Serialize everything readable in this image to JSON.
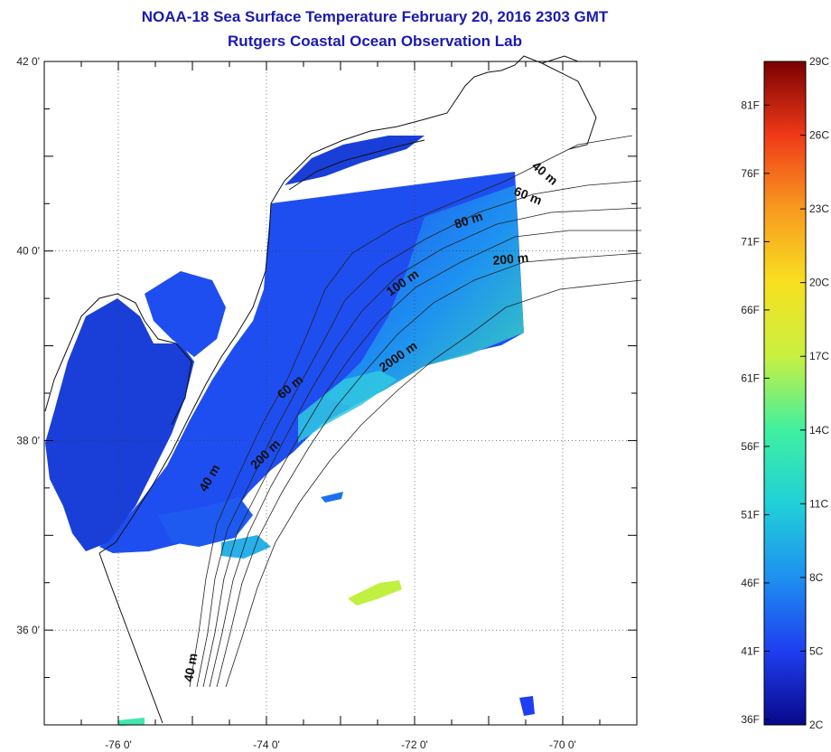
{
  "header": {
    "title": "NOAA-18 Sea Surface Temperature February 20, 2016 2303 GMT",
    "subtitle": "Rutgers Coastal Ocean Observation Lab"
  },
  "map": {
    "lat_range": [
      35,
      42
    ],
    "lon_range": [
      -77,
      -69
    ],
    "lat_ticks": [
      {
        "value": 42,
        "label": "42 0'"
      },
      {
        "value": 40,
        "label": "40 0'"
      },
      {
        "value": 38,
        "label": "38 0'"
      },
      {
        "value": 36,
        "label": "36 0'"
      }
    ],
    "lon_ticks": [
      {
        "value": -76,
        "label": "-76 0'"
      },
      {
        "value": -74,
        "label": "-74 0'"
      },
      {
        "value": -72,
        "label": "-72 0'"
      },
      {
        "value": -70,
        "label": "-70 0'"
      }
    ],
    "isobath_labels": [
      "40 m",
      "60 m",
      "80 m",
      "100 m",
      "200 m",
      "2000 m",
      "60 m",
      "200 m",
      "40 m",
      "40 m"
    ]
  },
  "colorbar": {
    "colors": [
      "#08088a",
      "#1f3ef0",
      "#1e90f0",
      "#20d0d8",
      "#40f0a0",
      "#c8f040",
      "#f8e020",
      "#f89a20",
      "#f03a18",
      "#7a0000"
    ],
    "fahrenheit": [
      "81F",
      "76F",
      "71F",
      "66F",
      "61F",
      "56F",
      "51F",
      "46F",
      "41F",
      "36F"
    ],
    "celsius": [
      "29C",
      "26C",
      "23C",
      "20C",
      "17C",
      "14C",
      "11C",
      "8C",
      "5C",
      "2C"
    ]
  }
}
